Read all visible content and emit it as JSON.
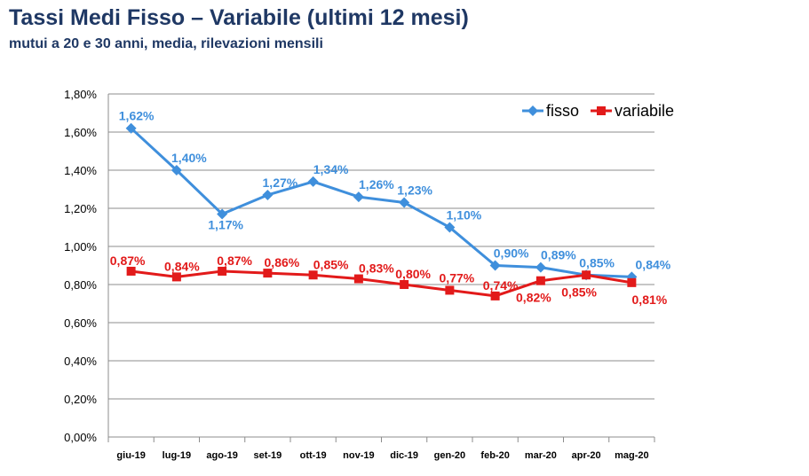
{
  "title": "Tassi Medi Fisso – Variabile (ultimi 12 mesi)",
  "subtitle": "mutui a 20 e 30 anni, media, rilevazioni mensili",
  "colors": {
    "title": "#1f3864",
    "fisso": "#3f8fdc",
    "variabile": "#e21a1a",
    "grid": "#8c8c8c"
  },
  "chart_data": {
    "type": "line",
    "title": "Tassi Medi Fisso – Variabile (ultimi 12 mesi)",
    "subtitle": "mutui a 20 e 30 anni, media, rilevazioni mensili",
    "categories": [
      "giu-19",
      "lug-19",
      "ago-19",
      "set-19",
      "ott-19",
      "nov-19",
      "dic-19",
      "gen-20",
      "feb-20",
      "mar-20",
      "apr-20",
      "mag-20"
    ],
    "ylim": [
      0,
      1.8
    ],
    "yticks": [
      0,
      0.2,
      0.4,
      0.6,
      0.8,
      1.0,
      1.2,
      1.4,
      1.6,
      1.8
    ],
    "ytick_labels": [
      "0,00%",
      "0,20%",
      "0,40%",
      "0,60%",
      "0,80%",
      "1,00%",
      "1,20%",
      "1,40%",
      "1,60%",
      "1,80%"
    ],
    "grid": true,
    "legend": "top-right",
    "series": [
      {
        "name": "fisso",
        "marker": "diamond",
        "values": [
          1.62,
          1.4,
          1.17,
          1.27,
          1.34,
          1.26,
          1.23,
          1.1,
          0.9,
          0.89,
          0.85,
          0.84
        ],
        "labels": [
          "1,62%",
          "1,40%",
          "1,17%",
          "1,27%",
          "1,34%",
          "1,26%",
          "1,23%",
          "1,10%",
          "0,90%",
          "0,89%",
          "0,85%",
          "0,84%"
        ]
      },
      {
        "name": "variabile",
        "marker": "square",
        "values": [
          0.87,
          0.84,
          0.87,
          0.86,
          0.85,
          0.83,
          0.8,
          0.77,
          0.74,
          0.82,
          0.85,
          0.81
        ],
        "labels": [
          "0,87%",
          "0,84%",
          "0,87%",
          "0,86%",
          "0,85%",
          "0,83%",
          "0,80%",
          "0,77%",
          "0,74%",
          "0,82%",
          "0,85%",
          "0,81%"
        ]
      }
    ]
  }
}
